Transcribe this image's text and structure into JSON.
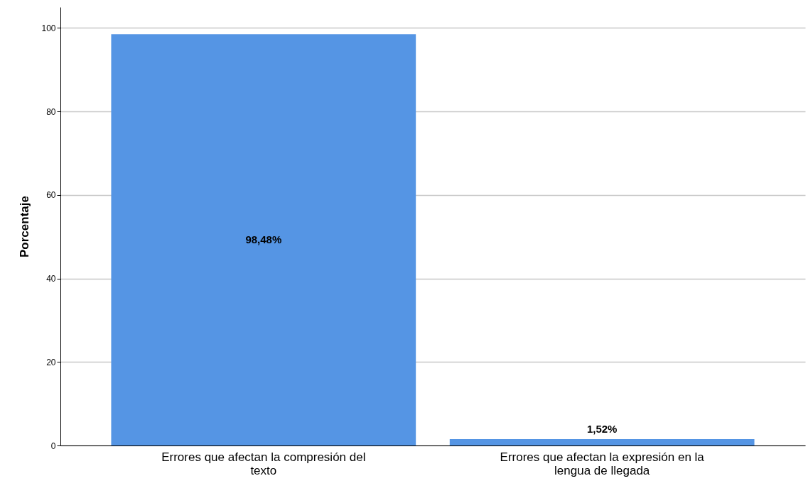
{
  "chart_data": {
    "type": "bar",
    "ylabel": "Porcentaje",
    "categories": [
      "Errores que afectan la compresión del texto",
      "Errores que afectan la expresión en la lengua de llegada"
    ],
    "values": [
      98.48,
      1.52
    ],
    "value_labels": [
      "98,48%",
      "1,52%"
    ],
    "color": "#5595e4",
    "ylim": [
      0,
      105
    ],
    "yticks": [
      0,
      20,
      40,
      60,
      80,
      100
    ],
    "grid": "y"
  }
}
